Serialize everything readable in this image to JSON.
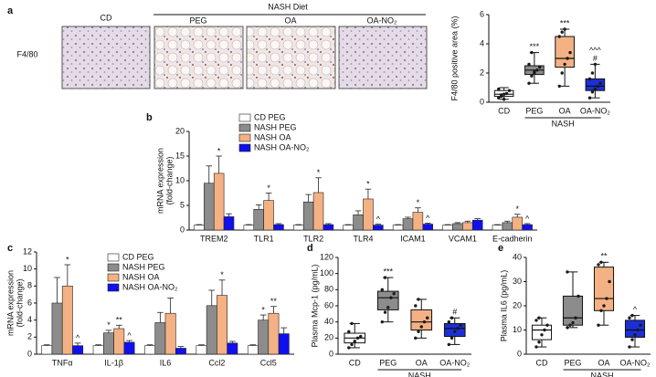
{
  "images": {
    "panel": "a",
    "row_label": "F4/80",
    "header": "NASH Diet",
    "columns": [
      "CD",
      "PEG",
      "OA",
      "OA-NO₂"
    ]
  },
  "chart_data": [
    {
      "type": "box",
      "ylabel": "F4/80 positive area (%)",
      "categories": [
        "CD",
        "PEG",
        "OA",
        "OA-NO₂"
      ],
      "group_label": "NASH",
      "ylim": [
        0,
        6
      ],
      "yticks": [
        0,
        2,
        4,
        6
      ],
      "boxes": [
        {
          "color": "#ffffff",
          "min": 0.2,
          "q1": 0.4,
          "median": 0.55,
          "q3": 0.8,
          "max": 1.0,
          "points": [
            0.3,
            0.5,
            0.55,
            0.6,
            0.8,
            0.9,
            0.4,
            0.2
          ]
        },
        {
          "color": "#8c8c8c",
          "min": 1.3,
          "q1": 1.9,
          "median": 2.2,
          "q3": 2.5,
          "max": 3.4,
          "points": [
            1.3,
            1.8,
            2.0,
            2.2,
            2.4,
            2.6,
            3.4,
            2.1
          ]
        },
        {
          "color": "#f4b183",
          "min": 1.1,
          "q1": 2.4,
          "median": 3.0,
          "q3": 4.5,
          "max": 5.0,
          "points": [
            1.1,
            2.0,
            2.6,
            3.0,
            3.4,
            4.5,
            4.8,
            5.0
          ]
        },
        {
          "color": "#1c2fd6",
          "min": 0.3,
          "q1": 0.8,
          "median": 1.1,
          "q3": 1.6,
          "max": 2.6,
          "points": [
            0.3,
            0.7,
            0.9,
            1.1,
            1.3,
            1.6,
            2.0,
            2.6
          ]
        }
      ],
      "annotations": [
        null,
        [
          "***"
        ],
        [
          "***"
        ],
        [
          "^^^",
          "#"
        ]
      ]
    },
    {
      "type": "bar",
      "panel": "b",
      "ylabel": [
        "mRNA expression",
        "(fold-change)"
      ],
      "categories": [
        "TREM2",
        "TLR1",
        "TLR2",
        "TLR4",
        "ICAM1",
        "VCAM1",
        "E-cadherin"
      ],
      "ylim": [
        0,
        20
      ],
      "yticks": [
        0,
        5,
        10,
        15,
        20
      ],
      "series": [
        {
          "name": "CD PEG",
          "color": "#ffffff",
          "values": [
            1,
            1,
            1,
            1,
            1,
            1,
            1
          ],
          "errors": [
            0.1,
            0.1,
            0.1,
            0.1,
            0.1,
            0.1,
            0.1
          ],
          "stars": [
            null,
            null,
            null,
            null,
            null,
            null,
            null
          ]
        },
        {
          "name": "NASH PEG",
          "color": "#8c8c8c",
          "values": [
            9.5,
            4.2,
            5.7,
            3.1,
            2.3,
            1.3,
            1.5
          ],
          "errors": [
            3.5,
            0.9,
            1.5,
            0.8,
            0.3,
            0.2,
            0.3
          ],
          "stars": [
            null,
            null,
            null,
            null,
            null,
            null,
            null
          ]
        },
        {
          "name": "NASH OA",
          "color": "#f4b183",
          "values": [
            11.5,
            6,
            7.6,
            6.3,
            3.6,
            1.5,
            2.6
          ],
          "errors": [
            3.5,
            1.5,
            3,
            2,
            0.9,
            0.3,
            0.6
          ],
          "stars": [
            "*",
            "*",
            "*",
            "*",
            "*",
            null,
            "*"
          ]
        },
        {
          "name": "NASH OA-NO₂",
          "color": "#1010ee",
          "values": [
            2.7,
            1.1,
            1.1,
            1.0,
            1.2,
            2.0,
            1.1
          ],
          "errors": [
            0.6,
            0.2,
            0.2,
            0.2,
            0.2,
            0.3,
            0.2
          ],
          "stars": [
            null,
            null,
            null,
            "^",
            "^",
            null,
            "^"
          ]
        }
      ]
    },
    {
      "type": "bar",
      "panel": "c",
      "ylabel": [
        "mRNA expression",
        "(fold-change)"
      ],
      "categories": [
        "TNFα",
        "IL-1β",
        "IL6",
        "Ccl2",
        "Ccl5"
      ],
      "ylim": [
        0,
        12
      ],
      "yticks": [
        0,
        2,
        4,
        6,
        8,
        10,
        12
      ],
      "series": [
        {
          "name": "CD PEG",
          "color": "#ffffff",
          "values": [
            1,
            1,
            1,
            1,
            1
          ],
          "errors": [
            0.1,
            0.1,
            0.1,
            0.1,
            0.1
          ],
          "stars": [
            null,
            null,
            null,
            null,
            null
          ]
        },
        {
          "name": "NASH PEG",
          "color": "#8c8c8c",
          "values": [
            6,
            2.5,
            3.7,
            5.7,
            4
          ],
          "errors": [
            3,
            0.3,
            1.2,
            1.8,
            0.6
          ],
          "stars": [
            null,
            "*",
            null,
            null,
            "*"
          ]
        },
        {
          "name": "NASH OA",
          "color": "#f4b183",
          "values": [
            8,
            3.0,
            4.8,
            6.9,
            4.8
          ],
          "errors": [
            2.5,
            0.4,
            1.8,
            1.8,
            0.8
          ],
          "stars": [
            "*",
            "**",
            null,
            "*",
            "**"
          ]
        },
        {
          "name": "NASH OA-NO₂",
          "color": "#1010ee",
          "values": [
            1.0,
            1.4,
            0.7,
            1.3,
            2.4
          ],
          "errors": [
            0.3,
            0.2,
            0.2,
            0.2,
            0.7
          ],
          "stars": [
            "^",
            "^",
            null,
            null,
            null
          ]
        }
      ]
    },
    {
      "type": "box",
      "panel": "d",
      "ylabel": "Plasma Mcp-1 (pg/mL)",
      "categories": [
        "CD",
        "PEG",
        "OA",
        "OA-NO₂"
      ],
      "group_label": "NASH",
      "ylim": [
        0,
        120
      ],
      "yticks": [
        0,
        20,
        40,
        60,
        80,
        100,
        120
      ],
      "boxes": [
        {
          "color": "#ffffff",
          "min": 8,
          "q1": 14,
          "median": 20,
          "q3": 26,
          "max": 38,
          "points": [
            8,
            12,
            16,
            20,
            22,
            28,
            38
          ]
        },
        {
          "color": "#8c8c8c",
          "min": 40,
          "q1": 55,
          "median": 70,
          "q3": 78,
          "max": 95,
          "points": [
            40,
            52,
            58,
            70,
            75,
            80,
            95
          ]
        },
        {
          "color": "#f4b183",
          "min": 20,
          "q1": 30,
          "median": 40,
          "q3": 55,
          "max": 68,
          "points": [
            20,
            28,
            34,
            40,
            45,
            60,
            68
          ]
        },
        {
          "color": "#1c2fd6",
          "min": 12,
          "q1": 22,
          "median": 32,
          "q3": 38,
          "max": 45,
          "points": [
            12,
            20,
            28,
            32,
            36,
            40,
            45
          ]
        }
      ],
      "annotations": [
        null,
        [
          "***"
        ],
        null,
        [
          "#"
        ]
      ]
    },
    {
      "type": "box",
      "panel": "e",
      "ylabel": "Plasma IL6 (pg/mL)",
      "categories": [
        "CD",
        "PEG",
        "OA",
        "OA-NO₂"
      ],
      "group_label": "NASH",
      "ylim": [
        0,
        40
      ],
      "yticks": [
        0,
        10,
        20,
        30,
        40
      ],
      "boxes": [
        {
          "color": "#ffffff",
          "min": 3,
          "q1": 6,
          "median": 10,
          "q3": 12,
          "max": 15,
          "points": [
            3,
            5,
            8,
            10,
            12,
            14,
            15
          ]
        },
        {
          "color": "#8c8c8c",
          "min": 11,
          "q1": 12,
          "median": 15,
          "q3": 24,
          "max": 34,
          "points": [
            11,
            12,
            13,
            15,
            24,
            34
          ]
        },
        {
          "color": "#f4b183",
          "min": 12,
          "q1": 18,
          "median": 23,
          "q3": 36,
          "max": 38,
          "points": [
            12,
            18,
            20,
            23,
            30,
            37,
            38
          ]
        },
        {
          "color": "#1c2fd6",
          "min": 3,
          "q1": 7,
          "median": 10,
          "q3": 14,
          "max": 16,
          "points": [
            3,
            6,
            8,
            10,
            12,
            15,
            16
          ]
        }
      ],
      "annotations": [
        null,
        null,
        [
          "**"
        ],
        [
          "^"
        ]
      ]
    }
  ]
}
